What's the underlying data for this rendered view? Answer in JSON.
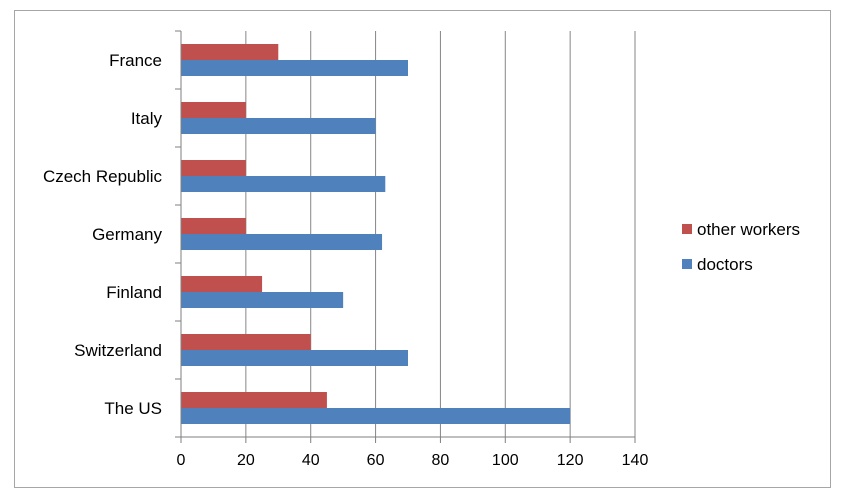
{
  "chart_data": {
    "type": "bar",
    "orientation": "horizontal",
    "title": "",
    "xlabel": "",
    "ylabel": "",
    "categories": [
      "France",
      "Italy",
      "Czech Republic",
      "Germany",
      "Finland",
      "Switzerland",
      "The US"
    ],
    "series": [
      {
        "name": "other workers",
        "color": "#c0504d",
        "values": [
          30,
          20,
          20,
          20,
          25,
          40,
          45
        ]
      },
      {
        "name": "doctors",
        "color": "#4f81bd",
        "values": [
          70,
          60,
          63,
          62,
          50,
          70,
          120
        ]
      }
    ],
    "xlim": [
      0,
      140
    ],
    "xticks": [
      0,
      20,
      40,
      60,
      80,
      100,
      120,
      140
    ],
    "grid": "vertical",
    "legend": "right"
  }
}
